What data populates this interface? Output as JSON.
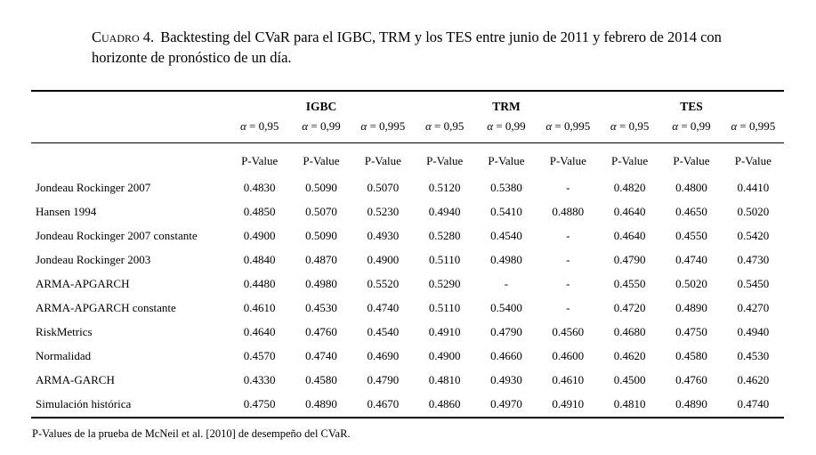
{
  "caption": {
    "label": "Cuadro 4.",
    "text": "Backtesting del CVaR para el IGBC, TRM y los TES entre junio de 2011 y febrero de 2014 con horizonte de pronóstico de un día."
  },
  "table": {
    "alpha_symbol": "α",
    "subheader": "P-Value",
    "groups": [
      {
        "name": "IGBC",
        "alphas": [
          " = 0,95",
          " = 0,99",
          " = 0,995"
        ]
      },
      {
        "name": "TRM",
        "alphas": [
          " = 0,95",
          " = 0,99",
          " = 0,995"
        ]
      },
      {
        "name": "TES",
        "alphas": [
          " = 0,95",
          " = 0,99",
          " = 0,995"
        ]
      }
    ],
    "rows": [
      {
        "name": "Jondeau Rockinger 2007",
        "values": [
          "0.4830",
          "0.5090",
          "0.5070",
          "0.5120",
          "0.5380",
          "-",
          "0.4820",
          "0.4800",
          "0.4410"
        ]
      },
      {
        "name": "Hansen 1994",
        "values": [
          "0.4850",
          "0.5070",
          "0.5230",
          "0.4940",
          "0.5410",
          "0.4880",
          "0.4640",
          "0.4650",
          "0.5020"
        ]
      },
      {
        "name": "Jondeau Rockinger 2007 constante",
        "values": [
          "0.4900",
          "0.5090",
          "0.4930",
          "0.5280",
          "0.4540",
          "-",
          "0.4640",
          "0.4550",
          "0.5420"
        ]
      },
      {
        "name": "Jondeau Rockinger 2003",
        "values": [
          "0.4840",
          "0.4870",
          "0.4900",
          "0.5110",
          "0.4980",
          "-",
          "0.4790",
          "0.4740",
          "0.4730"
        ]
      },
      {
        "name": "ARMA-APGARCH",
        "values": [
          "0.4480",
          "0.4980",
          "0.5520",
          "0.5290",
          "-",
          "-",
          "0.4550",
          "0.5020",
          "0.5450"
        ]
      },
      {
        "name": "ARMA-APGARCH constante",
        "values": [
          "0.4610",
          "0.4530",
          "0.4740",
          "0.5110",
          "0.5400",
          "-",
          "0.4720",
          "0.4890",
          "0.4270"
        ]
      },
      {
        "name": "RiskMetrics",
        "values": [
          "0.4640",
          "0.4760",
          "0.4540",
          "0.4910",
          "0.4790",
          "0.4560",
          "0.4680",
          "0.4750",
          "0.4940"
        ]
      },
      {
        "name": "Normalidad",
        "values": [
          "0.4570",
          "0.4740",
          "0.4690",
          "0.4900",
          "0.4660",
          "0.4600",
          "0.4620",
          "0.4580",
          "0.4530"
        ]
      },
      {
        "name": "ARMA-GARCH",
        "values": [
          "0.4330",
          "0.4580",
          "0.4790",
          "0.4810",
          "0.4930",
          "0.4610",
          "0.4500",
          "0.4760",
          "0.4620"
        ]
      },
      {
        "name": "Simulación histórica",
        "values": [
          "0.4750",
          "0.4890",
          "0.4670",
          "0.4860",
          "0.4970",
          "0.4910",
          "0.4810",
          "0.4890",
          "0.4740"
        ]
      }
    ]
  },
  "footnote": "P-Values de la prueba de McNeil et al. [2010] de desempeño del CVaR."
}
